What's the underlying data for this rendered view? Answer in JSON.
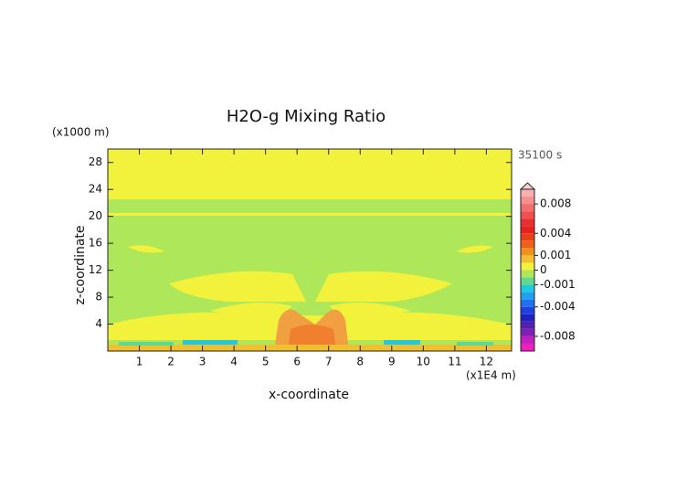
{
  "chart_data": {
    "type": "contour",
    "title": "H2O-g Mixing Ratio",
    "time_label": "35100 s",
    "x_label": "x-coordinate",
    "x_unit": "(x1E4 m)",
    "y_label": "z-coordinate",
    "y_unit": "(x1000 m)",
    "xlim": [
      0,
      12.8
    ],
    "xticks": [
      1,
      2,
      3,
      4,
      5,
      6,
      7,
      8,
      9,
      10,
      11,
      12
    ],
    "ylim": [
      0,
      30
    ],
    "yticks": [
      4,
      8,
      12,
      16,
      20,
      24,
      28
    ],
    "colorbar": {
      "levels": [
        0.01,
        0.009,
        0.008,
        0.007,
        0.006,
        0.005,
        0.004,
        0.003,
        0.002,
        0.001,
        0.0005,
        0,
        -0.0005,
        -0.001,
        -0.002,
        -0.003,
        -0.004,
        -0.005,
        -0.006,
        -0.007,
        -0.008,
        -0.009,
        -0.01
      ],
      "colors": [
        "#f8b0b0",
        "#f89090",
        "#f07070",
        "#f05050",
        "#e83030",
        "#e82020",
        "#e84018",
        "#f06018",
        "#f09020",
        "#f0c030",
        "#f2f23c",
        "#aee85a",
        "#60d890",
        "#20c8e0",
        "#20a0f0",
        "#2070f0",
        "#2040e0",
        "#2020c0",
        "#5020b0",
        "#8020b0",
        "#c020c0",
        "#f020c0"
      ],
      "ticks": [
        0.008,
        0.004,
        0.001,
        0,
        -0.001,
        -0.004,
        -0.008
      ]
    }
  }
}
